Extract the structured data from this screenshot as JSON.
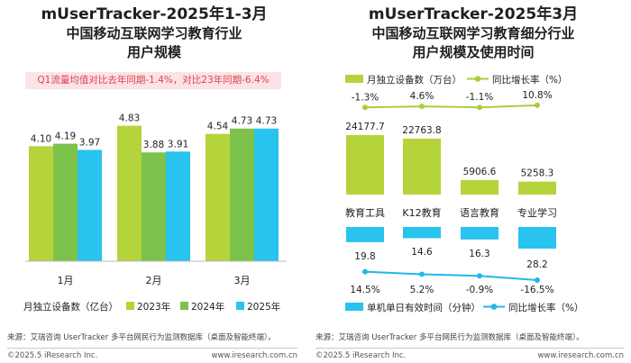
{
  "colors": {
    "y2023": "#b5d33a",
    "y2024": "#7cc24b",
    "y2025": "#28c3ee",
    "line_top": "#a8cf3b",
    "line_bottom": "#1fb8ea",
    "note_bg": "#fbe3e6",
    "note_text": "#e0434f"
  },
  "left": {
    "title_line1": "mUserTracker-2025年1-3月",
    "title_line2": "中国移动互联网学习教育行业",
    "title_line3": "用户规模",
    "note": "Q1流量均值对比去年同期-1.4%，对比23年同期-6.4%",
    "legend_caption": "月独立设备数（亿台）"
  },
  "right": {
    "title_line1": "mUserTracker-2025年3月",
    "title_line2": "中国移动互联网学习教育细分行业",
    "title_line3": "用户规模及使用时间"
  },
  "footer": {
    "left_source": "来源：艾瑞咨询 UserTracker 多平台网民行为监测数据库（桌面及智能终端）。",
    "left_copyright": "©2025.5 iResearch Inc.",
    "left_site": "www.iresearch.com.cn",
    "right_source": "来源：艾瑞咨询 UserTracker 多平台网民行为监测数据库（桌面及智能终端）。",
    "right_copyright": "©2025.5 iResearch Inc.",
    "right_site": "www.iresearch.com.cn"
  },
  "chart_data": [
    {
      "type": "bar",
      "title": "mUserTracker-2025年1-3月 中国移动互联网学习教育行业用户规模",
      "categories": [
        "1月",
        "2月",
        "3月"
      ],
      "series": [
        {
          "name": "2023年",
          "values": [
            4.1,
            4.83,
            4.54
          ],
          "labels": [
            "4.10",
            "4.83",
            "4.54"
          ]
        },
        {
          "name": "2024年",
          "values": [
            4.19,
            3.88,
            4.73
          ],
          "labels": [
            "4.19",
            "3.88",
            "4.73"
          ]
        },
        {
          "name": "2025年",
          "values": [
            3.97,
            3.91,
            4.73
          ],
          "labels": [
            "3.97",
            "3.91",
            "4.73"
          ]
        }
      ],
      "ylabel": "月独立设备数（亿台）",
      "ylim": [
        0,
        5.3
      ],
      "legend": "bottom"
    },
    {
      "type": "bar",
      "title": "mUserTracker-2025年3月 中国移动互联网学习教育细分行业用户规模及使用时间",
      "categories": [
        "教育工具",
        "K12教育",
        "语言教育",
        "专业学习"
      ],
      "devices": {
        "name": "月独立设备数（万台）",
        "values": [
          24177.7,
          22763.8,
          5906.6,
          5258.3
        ],
        "labels": [
          "24177.7",
          "22763.8",
          "5906.6",
          "5258.3"
        ]
      },
      "devices_growth": {
        "name": "同比增长率（%）",
        "values": [
          -1.3,
          4.6,
          -1.1,
          10.8
        ],
        "labels": [
          "-1.3%",
          "4.6%",
          "-1.1%",
          "10.8%"
        ]
      },
      "time": {
        "name": "单机单日有效时间（分钟）",
        "values": [
          19.8,
          14.6,
          16.3,
          28.2
        ],
        "labels": [
          "19.8",
          "14.6",
          "16.3",
          "28.2"
        ]
      },
      "time_growth": {
        "name": "同比增长率（%）",
        "values": [
          14.5,
          5.2,
          -0.9,
          -16.5
        ],
        "labels": [
          "14.5%",
          "5.2%",
          "-0.9%",
          "-16.5%"
        ]
      },
      "legend": "top and bottom"
    }
  ]
}
